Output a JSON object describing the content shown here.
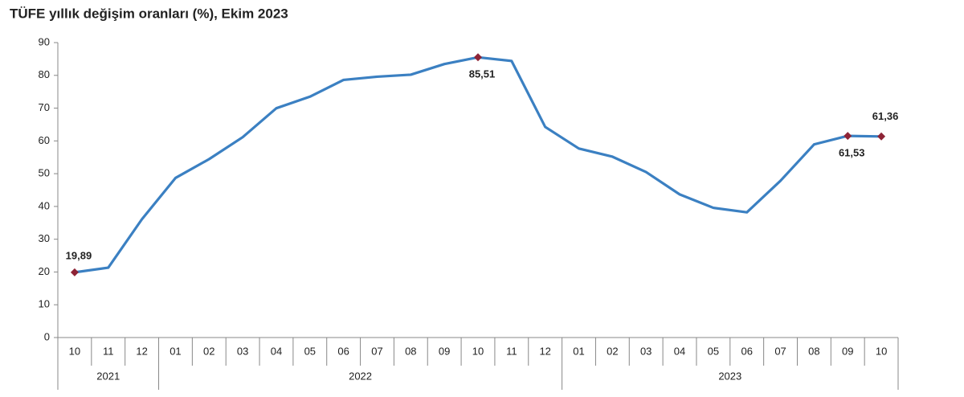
{
  "chart_data": {
    "type": "line",
    "title": "TÜFE yıllık değişim oranları (%), Ekim 2023",
    "groups": [
      {
        "label": "2021",
        "categories": [
          "10",
          "11",
          "12"
        ]
      },
      {
        "label": "2022",
        "categories": [
          "01",
          "02",
          "03",
          "04",
          "05",
          "06",
          "07",
          "08",
          "09",
          "10",
          "11",
          "12"
        ]
      },
      {
        "label": "2023",
        "categories": [
          "01",
          "02",
          "03",
          "04",
          "05",
          "06",
          "07",
          "08",
          "09",
          "10"
        ]
      }
    ],
    "values": [
      19.89,
      21.31,
      36.08,
      48.69,
      54.44,
      61.14,
      69.97,
      73.5,
      78.62,
      79.6,
      80.21,
      83.45,
      85.51,
      84.39,
      64.27,
      57.68,
      55.18,
      50.51,
      43.68,
      39.59,
      38.21,
      47.83,
      58.94,
      61.53,
      61.36
    ],
    "value_labels": [
      "19,89",
      null,
      null,
      null,
      null,
      null,
      null,
      null,
      null,
      null,
      null,
      null,
      "85,51",
      null,
      null,
      null,
      null,
      null,
      null,
      null,
      null,
      null,
      null,
      "61,53",
      "61,36"
    ],
    "color": "#3b80c2",
    "marker_color": "#8e2436",
    "ylim": [
      0,
      90
    ],
    "yticks": [
      0,
      10,
      20,
      30,
      40,
      50,
      60,
      70,
      80,
      90
    ],
    "grid": false
  }
}
